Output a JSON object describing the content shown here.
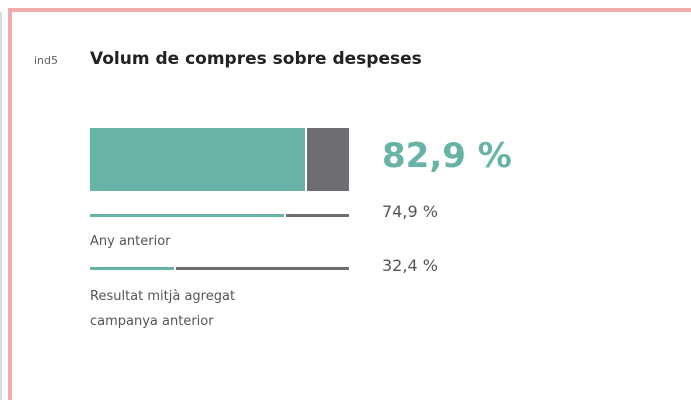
{
  "chart_data": {
    "type": "bar",
    "label": "ind5",
    "title": "Volum de compres sobre despeses",
    "categories": [
      null,
      "Any anterior",
      "Resultat mitjà agregat campanya anterior"
    ],
    "values": [
      82.9,
      74.9,
      32.4
    ],
    "value_labels": [
      "82,9 %",
      "74,9 %",
      "32,4 %"
    ],
    "xlim": [
      0,
      100
    ],
    "color": "#68b3a8",
    "remainder_color": "#6d6e71"
  }
}
